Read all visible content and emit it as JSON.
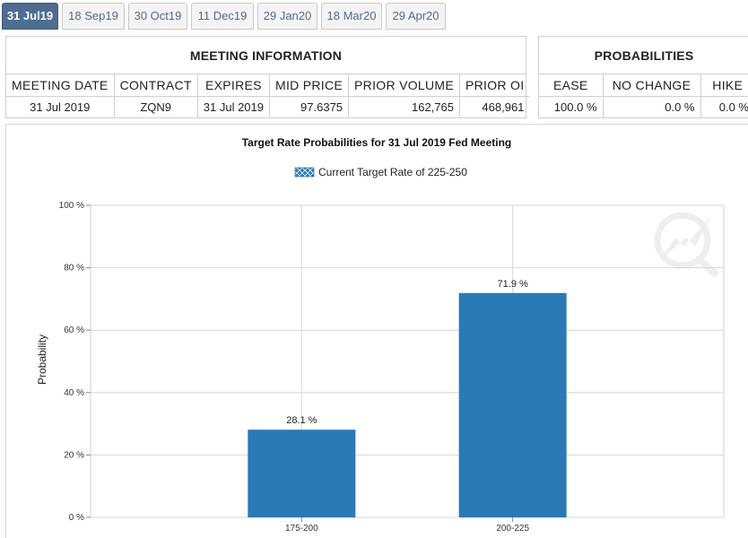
{
  "tabs": [
    {
      "label": "31 Jul19",
      "active": true
    },
    {
      "label": "18 Sep19",
      "active": false
    },
    {
      "label": "30 Oct19",
      "active": false
    },
    {
      "label": "11 Dec19",
      "active": false
    },
    {
      "label": "29 Jan20",
      "active": false
    },
    {
      "label": "18 Mar20",
      "active": false
    },
    {
      "label": "29 Apr20",
      "active": false
    }
  ],
  "meeting_info": {
    "title": "MEETING INFORMATION",
    "headers": [
      "MEETING DATE",
      "CONTRACT",
      "EXPIRES",
      "MID PRICE",
      "PRIOR VOLUME",
      "PRIOR OI"
    ],
    "row": [
      "31 Jul 2019",
      "ZQN9",
      "31 Jul 2019",
      "97.6375",
      "162,765",
      "468,961"
    ]
  },
  "probabilities": {
    "title": "PROBABILITIES",
    "headers": [
      "EASE",
      "NO CHANGE",
      "HIKE"
    ],
    "row": [
      "100.0 %",
      "0.0 %",
      "0.0 %"
    ]
  },
  "colors": {
    "bar": "#2a7ab6",
    "tab_active": "#4f6d91",
    "tab_text": "#4a6a99"
  },
  "chart_data": {
    "type": "bar",
    "title": "Target Rate Probabilities for 31 Jul 2019 Fed Meeting",
    "legend": "Current Target Rate of 225-250",
    "legend_position": "top-center",
    "categories": [
      "175-200",
      "200-225"
    ],
    "values": [
      28.1,
      71.9
    ],
    "data_labels": [
      "28.1 %",
      "71.9 %"
    ],
    "ylabel": "Probability",
    "xlabel": "",
    "ylim": [
      0,
      100
    ],
    "yticks": [
      0,
      20,
      40,
      60,
      80,
      100
    ],
    "ytick_labels": [
      "0 %",
      "20 %",
      "40 %",
      "60 %",
      "80 %",
      "100 %"
    ],
    "grid": true
  }
}
